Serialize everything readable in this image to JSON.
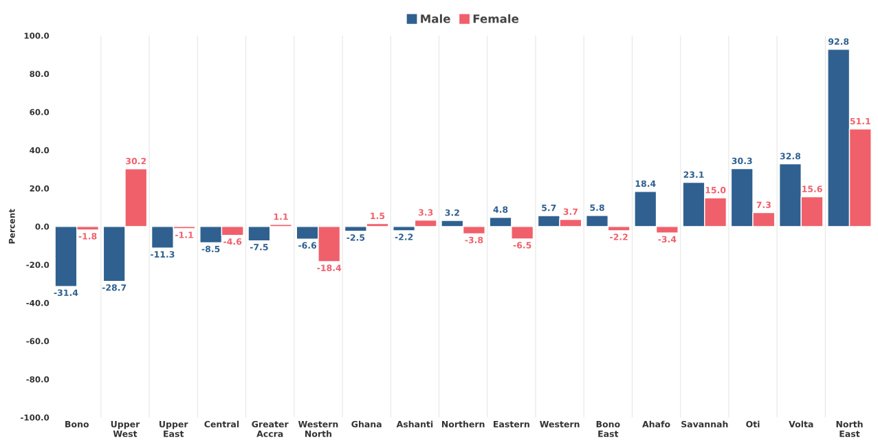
{
  "chart_data": {
    "type": "bar",
    "ylabel": "Percent",
    "categories": [
      "Bono",
      "Upper\nWest",
      "Upper\nEast",
      "Central",
      "Greater\nAccra",
      "Western\nNorth",
      "Ghana",
      "Ashanti",
      "Northern",
      "Eastern",
      "Western",
      "Bono\nEast",
      "Ahafo",
      "Savannah",
      "Oti",
      "Volta",
      "North\nEast"
    ],
    "series": [
      {
        "name": "Male",
        "color": "#2f6090",
        "values": [
          -31.4,
          -28.7,
          -11.3,
          -8.5,
          -7.5,
          -6.6,
          -2.5,
          -2.2,
          3.2,
          4.8,
          5.7,
          5.8,
          18.4,
          23.1,
          30.3,
          32.8,
          92.8
        ],
        "value_labels": [
          "-31.4",
          "-28.7",
          "-11.3",
          "-8.5",
          "-7.5",
          "-6.6",
          "-2.5",
          "-2.2",
          "3.2",
          "4.8",
          "5.7",
          "5.8",
          "18.4",
          "23.1",
          "30.3",
          "32.8",
          "92.8"
        ]
      },
      {
        "name": "Female",
        "color": "#f0606b",
        "values": [
          -1.8,
          30.2,
          -1.1,
          -4.6,
          1.1,
          -18.4,
          1.5,
          3.3,
          -3.8,
          -6.5,
          3.7,
          -2.2,
          -3.4,
          15.0,
          7.3,
          15.6,
          51.1
        ],
        "value_labels": [
          "-1.8",
          "30.2",
          "-1.1",
          "-4.6",
          "1.1",
          "-18.4",
          "1.5",
          "3.3",
          "-3.8",
          "-6.5",
          "3.7",
          "-2.2",
          "-3.4",
          "15.0",
          "7.3",
          "15.6",
          "51.1"
        ]
      }
    ],
    "ylim": [
      -100,
      100
    ],
    "yticks": [
      {
        "value": -100,
        "label": "-100.0"
      },
      {
        "value": -80,
        "label": "-80.0"
      },
      {
        "value": -60,
        "label": "-60.0"
      },
      {
        "value": -40,
        "label": "-40.0"
      },
      {
        "value": -20,
        "label": "-20.0"
      },
      {
        "value": 0,
        "label": "0.0"
      },
      {
        "value": 20,
        "label": "20.0"
      },
      {
        "value": 40,
        "label": "40.0"
      },
      {
        "value": 60,
        "label": "60.0"
      },
      {
        "value": 80,
        "label": "80.0"
      },
      {
        "value": 100,
        "label": "100.0"
      }
    ],
    "grid": "x",
    "legend": "top"
  }
}
